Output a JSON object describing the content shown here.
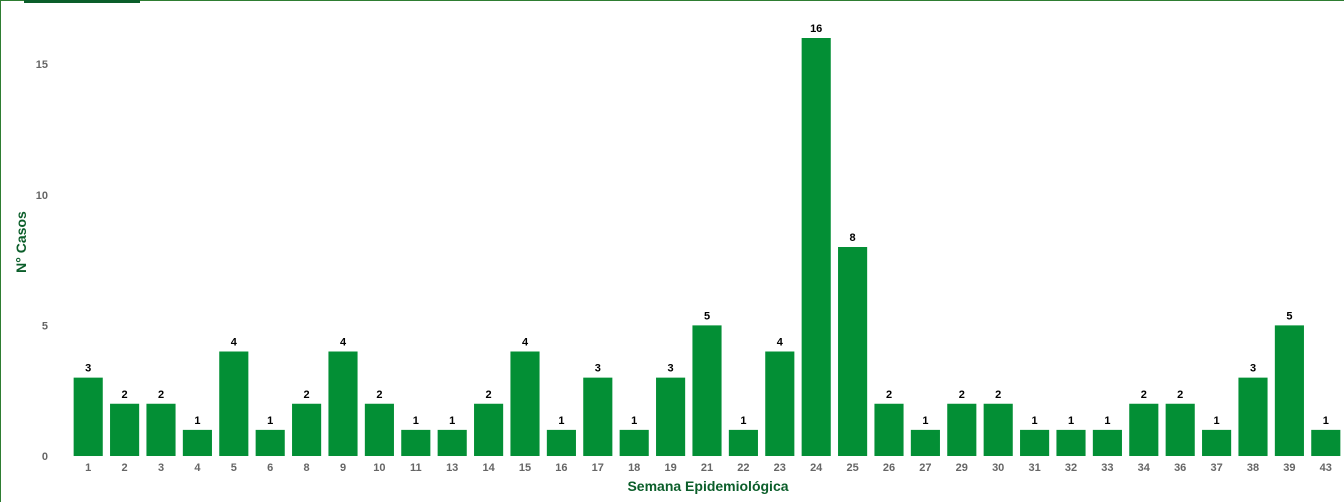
{
  "chart_data": {
    "type": "bar",
    "title": "",
    "xlabel": "Semana Epidemiológica",
    "ylabel": "N° Casos",
    "categories": [
      "1",
      "2",
      "3",
      "4",
      "5",
      "6",
      "8",
      "9",
      "10",
      "11",
      "13",
      "14",
      "15",
      "16",
      "17",
      "18",
      "19",
      "21",
      "22",
      "23",
      "24",
      "25",
      "26",
      "27",
      "29",
      "30",
      "31",
      "32",
      "33",
      "34",
      "36",
      "37",
      "38",
      "39",
      "43"
    ],
    "values": [
      3,
      2,
      2,
      1,
      4,
      1,
      2,
      4,
      2,
      1,
      1,
      2,
      4,
      1,
      3,
      1,
      3,
      5,
      1,
      4,
      16,
      8,
      2,
      1,
      2,
      2,
      1,
      1,
      1,
      2,
      2,
      1,
      3,
      5,
      1
    ],
    "ylim": [
      0,
      16
    ],
    "yticks": [
      0,
      5,
      10,
      15
    ],
    "grid": false,
    "data_labels": true,
    "bar_color": "#038f35"
  }
}
